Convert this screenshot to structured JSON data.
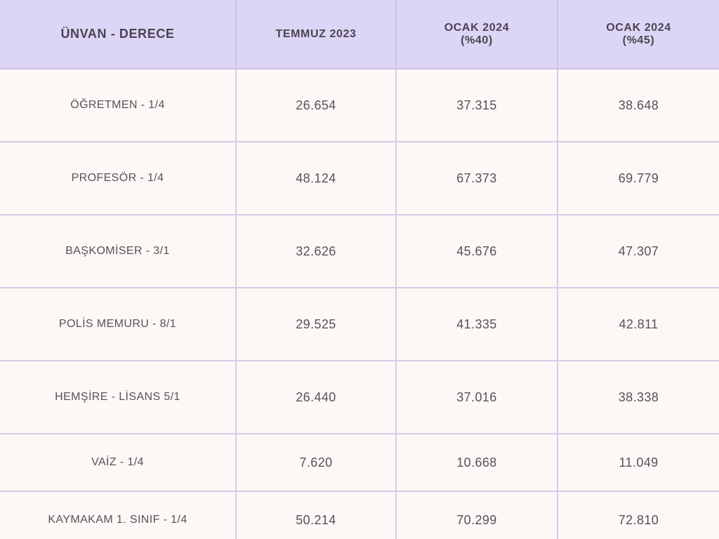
{
  "chart_data": {
    "type": "table",
    "title": "",
    "columns": [
      "ÜNVAN - DERECE",
      "TEMMUZ 2023",
      "OCAK 2024\n(%40)",
      "OCAK 2024\n(%45)"
    ],
    "rows": [
      {
        "label": "ÖĞRETMEN - 1/4",
        "values": [
          "26.654",
          "37.315",
          "38.648"
        ]
      },
      {
        "label": "PROFESÖR - 1/4",
        "values": [
          "48.124",
          "67.373",
          "69.779"
        ]
      },
      {
        "label": "BAŞKOMİSER - 3/1",
        "values": [
          "32.626",
          "45.676",
          "47.307"
        ]
      },
      {
        "label": "POLİS MEMURU - 8/1",
        "values": [
          "29.525",
          "41.335",
          "42.811"
        ]
      },
      {
        "label": "HEMŞİRE - LİSANS 5/1",
        "values": [
          "26.440",
          "37.016",
          "38.338"
        ]
      },
      {
        "label": "VAİZ - 1/4",
        "values": [
          "7.620",
          "10.668",
          "11.049"
        ]
      },
      {
        "label": "KAYMAKAM 1. SINIF - 1/4",
        "values": [
          "50.214",
          "70.299",
          "72.810"
        ]
      }
    ],
    "colors": {
      "header_bg": "#dcd5f6",
      "cell_bg": "#fdf8f5",
      "border": "#d5cbe8",
      "bottom_border": "#b2a7cb",
      "header_text": "#4a4450",
      "cell_text": "#56515d"
    }
  }
}
